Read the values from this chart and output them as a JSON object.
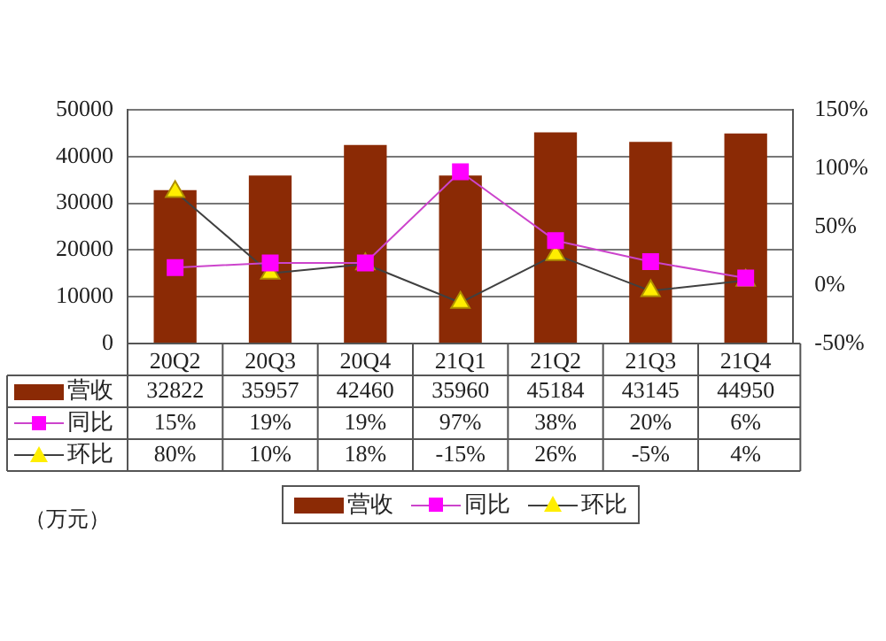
{
  "chart_data": {
    "type": "bar",
    "categories": [
      "20Q2",
      "20Q3",
      "20Q4",
      "21Q1",
      "21Q2",
      "21Q3",
      "21Q4"
    ],
    "series": [
      {
        "name": "营收",
        "color": "#8b2a05",
        "values": [
          32822,
          35957,
          42460,
          35960,
          45184,
          43145,
          44950
        ],
        "value_labels": [
          "32822",
          "35957",
          "42460",
          "35960",
          "45184",
          "43145",
          "44950"
        ]
      },
      {
        "name": "同比",
        "type": "line",
        "axis": "y2",
        "color": "#cc44cc",
        "marker": "square",
        "values": [
          15,
          19,
          19,
          97,
          38,
          20,
          6
        ],
        "value_labels": [
          "15%",
          "19%",
          "19%",
          "97%",
          "38%",
          "20%",
          "6%"
        ]
      },
      {
        "name": "环比",
        "type": "line",
        "axis": "y2",
        "color": "#404040",
        "marker": "triangle",
        "values": [
          80,
          10,
          18,
          -15,
          26,
          -5,
          4
        ],
        "value_labels": [
          "80%",
          "10%",
          "18%",
          "-15%",
          "26%",
          "-5%",
          "4%"
        ]
      }
    ],
    "ylim": [
      0,
      50000
    ],
    "yticks": [
      0,
      10000,
      20000,
      30000,
      40000,
      50000
    ],
    "y2lim": [
      -50,
      150
    ],
    "y2ticks": [
      {
        "value": -50,
        "label": "-50%"
      },
      {
        "value": 0,
        "label": "0%"
      },
      {
        "value": 50,
        "label": "50%"
      },
      {
        "value": 100,
        "label": "100%"
      },
      {
        "value": 150,
        "label": "150%"
      }
    ],
    "grid": "y",
    "legend": "bottom",
    "annotations": [
      "（万元）"
    ]
  }
}
